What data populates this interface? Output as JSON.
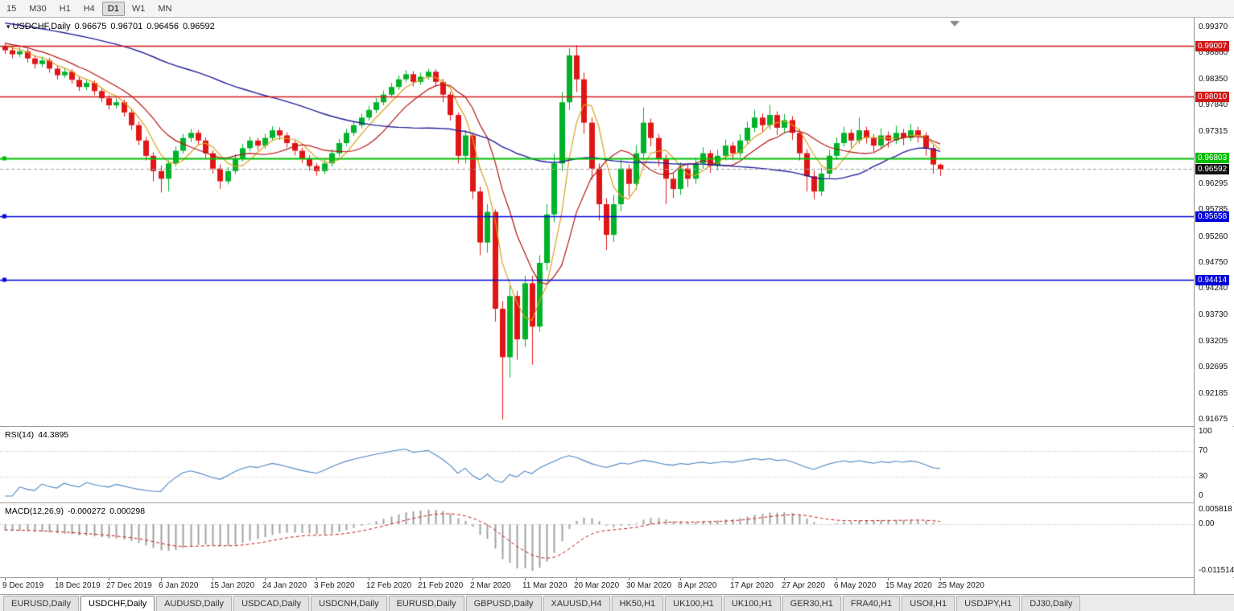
{
  "toolbar": {
    "timeframes": [
      {
        "label": "15",
        "active": false
      },
      {
        "label": "M30",
        "active": false
      },
      {
        "label": "H1",
        "active": false
      },
      {
        "label": "H4",
        "active": false
      },
      {
        "label": "D1",
        "active": true
      },
      {
        "label": "W1",
        "active": false
      },
      {
        "label": "MN",
        "active": false
      }
    ]
  },
  "chart_data": {
    "type": "candlestick",
    "title": {
      "symbol": "USDCHF,Daily",
      "open": "0.96675",
      "high": "0.96701",
      "low": "0.96456",
      "close": "0.96592"
    },
    "colors": {
      "bull": "#00b22a",
      "bear": "#e01616"
    },
    "y_ticks": [
      "0.99370",
      "0.98860",
      "0.98350",
      "0.97840",
      "0.97315",
      "0.96295",
      "0.95785",
      "0.95260",
      "0.94750",
      "0.94240",
      "0.93730",
      "0.93205",
      "0.92695",
      "0.92185",
      "0.91675"
    ],
    "price_lines": [
      {
        "price": 0.99007,
        "label": "0.99007",
        "color": "#d01818",
        "type": "resistance"
      },
      {
        "price": 0.9801,
        "label": "0.98010",
        "color": "#d01818",
        "type": "resistance"
      },
      {
        "price": 0.96803,
        "label": "0.96803",
        "color": "#00bd00",
        "type": "level"
      },
      {
        "price": 0.96592,
        "label": "0.96592",
        "color": "#111111",
        "type": "current-bid"
      },
      {
        "price": 0.95658,
        "label": "0.95658",
        "color": "#0000d8",
        "type": "support"
      },
      {
        "price": 0.94414,
        "label": "0.94414",
        "color": "#0000d8",
        "type": "support"
      }
    ],
    "moving_averages": [
      {
        "name": "ma-fast",
        "period": 5,
        "color": "#d9a21b"
      },
      {
        "name": "ma-mid",
        "period": 10,
        "color": "#b41414"
      },
      {
        "name": "ma-slow",
        "period": 50,
        "color": "#20209a"
      }
    ],
    "x_labels": [
      "9 Dec 2019",
      "18 Dec 2019",
      "27 Dec 2019",
      "6 Jan 2020",
      "15 Jan 2020",
      "24 Jan 2020",
      "3 Feb 2020",
      "12 Feb 2020",
      "21 Feb 2020",
      "2 Mar 2020",
      "11 Mar 2020",
      "20 Mar 2020",
      "30 Mar 2020",
      "8 Apr 2020",
      "17 Apr 2020",
      "27 Apr 2020",
      "6 May 2020",
      "15 May 2020",
      "25 May 2020"
    ],
    "x_label_indices": [
      0,
      7,
      14,
      21,
      28,
      35,
      42,
      49,
      56,
      63,
      70,
      77,
      84,
      91,
      98,
      105,
      112,
      119,
      126
    ],
    "candles": [
      [
        0.99,
        0.9905,
        0.9885,
        0.9892
      ],
      [
        0.9892,
        0.99,
        0.9876,
        0.9884
      ],
      [
        0.9884,
        0.9898,
        0.9878,
        0.989
      ],
      [
        0.989,
        0.9895,
        0.9868,
        0.9876
      ],
      [
        0.9876,
        0.9882,
        0.9856,
        0.9865
      ],
      [
        0.9865,
        0.988,
        0.9859,
        0.9872
      ],
      [
        0.9872,
        0.9877,
        0.9848,
        0.9856
      ],
      [
        0.9856,
        0.9862,
        0.9835,
        0.9843
      ],
      [
        0.9843,
        0.9858,
        0.9838,
        0.985
      ],
      [
        0.985,
        0.9855,
        0.9826,
        0.9834
      ],
      [
        0.9834,
        0.984,
        0.9812,
        0.982
      ],
      [
        0.982,
        0.9836,
        0.9814,
        0.9828
      ],
      [
        0.9828,
        0.9833,
        0.9804,
        0.9812
      ],
      [
        0.9812,
        0.9818,
        0.979,
        0.9798
      ],
      [
        0.9798,
        0.9804,
        0.9776,
        0.9784
      ],
      [
        0.9784,
        0.9798,
        0.9778,
        0.979
      ],
      [
        0.979,
        0.9795,
        0.9762,
        0.977
      ],
      [
        0.977,
        0.9776,
        0.9736,
        0.9745
      ],
      [
        0.9745,
        0.9752,
        0.9706,
        0.9715
      ],
      [
        0.9715,
        0.9722,
        0.9676,
        0.9685
      ],
      [
        0.9685,
        0.9692,
        0.9635,
        0.9655
      ],
      [
        0.9655,
        0.9666,
        0.9613,
        0.964
      ],
      [
        0.964,
        0.9676,
        0.9615,
        0.967
      ],
      [
        0.967,
        0.9703,
        0.9664,
        0.9695
      ],
      [
        0.9695,
        0.9728,
        0.9689,
        0.972
      ],
      [
        0.972,
        0.9738,
        0.9712,
        0.973
      ],
      [
        0.973,
        0.9736,
        0.9706,
        0.9715
      ],
      [
        0.9715,
        0.9721,
        0.9681,
        0.969
      ],
      [
        0.969,
        0.9696,
        0.965,
        0.966
      ],
      [
        0.966,
        0.9668,
        0.962,
        0.9635
      ],
      [
        0.9635,
        0.9663,
        0.9629,
        0.9655
      ],
      [
        0.9655,
        0.9688,
        0.9649,
        0.968
      ],
      [
        0.968,
        0.9708,
        0.9674,
        0.97
      ],
      [
        0.97,
        0.9723,
        0.9694,
        0.9715
      ],
      [
        0.9715,
        0.972,
        0.9696,
        0.9705
      ],
      [
        0.9705,
        0.9728,
        0.9699,
        0.972
      ],
      [
        0.972,
        0.9743,
        0.9714,
        0.9735
      ],
      [
        0.9735,
        0.9741,
        0.9716,
        0.9725
      ],
      [
        0.9725,
        0.9731,
        0.9701,
        0.971
      ],
      [
        0.971,
        0.9716,
        0.9686,
        0.9695
      ],
      [
        0.9695,
        0.9701,
        0.9671,
        0.968
      ],
      [
        0.968,
        0.9686,
        0.9656,
        0.9665
      ],
      [
        0.9665,
        0.9671,
        0.9646,
        0.9655
      ],
      [
        0.9655,
        0.9678,
        0.9649,
        0.967
      ],
      [
        0.967,
        0.9698,
        0.9664,
        0.969
      ],
      [
        0.969,
        0.9718,
        0.9684,
        0.971
      ],
      [
        0.971,
        0.9738,
        0.9704,
        0.973
      ],
      [
        0.973,
        0.9753,
        0.9724,
        0.9745
      ],
      [
        0.9745,
        0.9768,
        0.9739,
        0.976
      ],
      [
        0.976,
        0.9783,
        0.9754,
        0.9775
      ],
      [
        0.9775,
        0.9798,
        0.9769,
        0.979
      ],
      [
        0.979,
        0.9813,
        0.9784,
        0.9805
      ],
      [
        0.9805,
        0.9828,
        0.9799,
        0.982
      ],
      [
        0.982,
        0.9843,
        0.9814,
        0.9835
      ],
      [
        0.9835,
        0.9853,
        0.9829,
        0.9845
      ],
      [
        0.9845,
        0.9851,
        0.9821,
        0.983
      ],
      [
        0.983,
        0.9848,
        0.9824,
        0.984
      ],
      [
        0.984,
        0.9856,
        0.9834,
        0.985
      ],
      [
        0.985,
        0.9855,
        0.9821,
        0.983
      ],
      [
        0.983,
        0.9836,
        0.979,
        0.9805
      ],
      [
        0.9805,
        0.9811,
        0.9754,
        0.9765
      ],
      [
        0.9765,
        0.977,
        0.967,
        0.9685
      ],
      [
        0.9685,
        0.9735,
        0.967,
        0.9725
      ],
      [
        0.9725,
        0.973,
        0.96,
        0.9615
      ],
      [
        0.9615,
        0.9625,
        0.949,
        0.9515
      ],
      [
        0.9515,
        0.959,
        0.9495,
        0.9575
      ],
      [
        0.9575,
        0.958,
        0.936,
        0.9385
      ],
      [
        0.9385,
        0.94,
        0.9168,
        0.929
      ],
      [
        0.929,
        0.943,
        0.925,
        0.941
      ],
      [
        0.941,
        0.942,
        0.9285,
        0.9325
      ],
      [
        0.9325,
        0.945,
        0.931,
        0.9435
      ],
      [
        0.9435,
        0.945,
        0.9275,
        0.935
      ],
      [
        0.935,
        0.949,
        0.934,
        0.9475
      ],
      [
        0.9475,
        0.959,
        0.946,
        0.957
      ],
      [
        0.957,
        0.969,
        0.9555,
        0.967
      ],
      [
        0.967,
        0.981,
        0.9655,
        0.979
      ],
      [
        0.979,
        0.9896,
        0.9775,
        0.9882
      ],
      [
        0.9882,
        0.9902,
        0.981,
        0.9835
      ],
      [
        0.9835,
        0.9848,
        0.9728,
        0.975
      ],
      [
        0.975,
        0.976,
        0.9638,
        0.966
      ],
      [
        0.966,
        0.967,
        0.9558,
        0.959
      ],
      [
        0.959,
        0.9602,
        0.95,
        0.953
      ],
      [
        0.953,
        0.9608,
        0.9516,
        0.959
      ],
      [
        0.959,
        0.9678,
        0.9576,
        0.966
      ],
      [
        0.966,
        0.9668,
        0.9606,
        0.963
      ],
      [
        0.963,
        0.9706,
        0.9618,
        0.969
      ],
      [
        0.969,
        0.978,
        0.9676,
        0.975
      ],
      [
        0.975,
        0.9758,
        0.9704,
        0.972
      ],
      [
        0.972,
        0.9728,
        0.9664,
        0.968
      ],
      [
        0.968,
        0.9688,
        0.959,
        0.964
      ],
      [
        0.964,
        0.965,
        0.9602,
        0.962
      ],
      [
        0.962,
        0.9672,
        0.9608,
        0.966
      ],
      [
        0.966,
        0.9668,
        0.9624,
        0.964
      ],
      [
        0.964,
        0.9682,
        0.963,
        0.967
      ],
      [
        0.967,
        0.9702,
        0.966,
        0.969
      ],
      [
        0.969,
        0.9696,
        0.9651,
        0.9665
      ],
      [
        0.9665,
        0.9697,
        0.9656,
        0.9685
      ],
      [
        0.9685,
        0.9717,
        0.9676,
        0.9705
      ],
      [
        0.9705,
        0.9712,
        0.9676,
        0.969
      ],
      [
        0.969,
        0.9727,
        0.9682,
        0.9715
      ],
      [
        0.9715,
        0.9752,
        0.9707,
        0.974
      ],
      [
        0.974,
        0.9775,
        0.9732,
        0.976
      ],
      [
        0.976,
        0.9768,
        0.9731,
        0.9745
      ],
      [
        0.9745,
        0.9785,
        0.9737,
        0.9765
      ],
      [
        0.9765,
        0.9772,
        0.9726,
        0.974
      ],
      [
        0.974,
        0.9767,
        0.973,
        0.9755
      ],
      [
        0.9755,
        0.9763,
        0.9716,
        0.973
      ],
      [
        0.973,
        0.9738,
        0.9676,
        0.969
      ],
      [
        0.969,
        0.9698,
        0.9615,
        0.9645
      ],
      [
        0.9645,
        0.9656,
        0.96,
        0.9615
      ],
      [
        0.9615,
        0.9662,
        0.9606,
        0.965
      ],
      [
        0.965,
        0.9697,
        0.9641,
        0.9685
      ],
      [
        0.9685,
        0.9721,
        0.9677,
        0.971
      ],
      [
        0.971,
        0.9742,
        0.9703,
        0.973
      ],
      [
        0.973,
        0.9737,
        0.9701,
        0.9715
      ],
      [
        0.9715,
        0.976,
        0.9708,
        0.9735
      ],
      [
        0.9735,
        0.9742,
        0.9709,
        0.972
      ],
      [
        0.972,
        0.9727,
        0.9693,
        0.9705
      ],
      [
        0.9705,
        0.9739,
        0.9698,
        0.9725
      ],
      [
        0.9725,
        0.9733,
        0.9701,
        0.9715
      ],
      [
        0.9715,
        0.9744,
        0.9708,
        0.973
      ],
      [
        0.973,
        0.9738,
        0.9706,
        0.972
      ],
      [
        0.972,
        0.9748,
        0.9713,
        0.9735
      ],
      [
        0.9735,
        0.9742,
        0.9711,
        0.9725
      ],
      [
        0.9725,
        0.9731,
        0.9685,
        0.97
      ],
      [
        0.97,
        0.9706,
        0.965,
        0.9668
      ],
      [
        0.96675,
        0.96701,
        0.96456,
        0.96592
      ]
    ],
    "rsi": {
      "label": "RSI(14)",
      "value": "44.3895",
      "period": 14,
      "levels": [
        "100",
        "70",
        "30",
        "0"
      ],
      "color": "#4f86c0"
    },
    "macd": {
      "label": "MACD(12,26,9)",
      "value_main": "-0.000272",
      "value_signal": "0.000298",
      "fast": 12,
      "slow": 26,
      "signal": 9,
      "axis_labels": [
        "0.005818",
        "0.00",
        "-0.011514"
      ],
      "histogram_color": "#a0a0a0",
      "signal_color": "#c01818"
    }
  },
  "tabs": [
    {
      "label": "EURUSD,Daily",
      "active": false
    },
    {
      "label": "USDCHF,Daily",
      "active": true
    },
    {
      "label": "AUDUSD,Daily",
      "active": false
    },
    {
      "label": "USDCAD,Daily",
      "active": false
    },
    {
      "label": "USDCNH,Daily",
      "active": false
    },
    {
      "label": "EURUSD,Daily",
      "active": false
    },
    {
      "label": "GBPUSD,Daily",
      "active": false
    },
    {
      "label": "XAUUSD,H4",
      "active": false
    },
    {
      "label": "HK50,H1",
      "active": false
    },
    {
      "label": "UK100,H1",
      "active": false
    },
    {
      "label": "UK100,H1",
      "active": false
    },
    {
      "label": "GER30,H1",
      "active": false
    },
    {
      "label": "FRA40,H1",
      "active": false
    },
    {
      "label": "USOil,H1",
      "active": false
    },
    {
      "label": "USDJPY,H1",
      "active": false
    },
    {
      "label": "DJ30,Daily",
      "active": false
    }
  ]
}
